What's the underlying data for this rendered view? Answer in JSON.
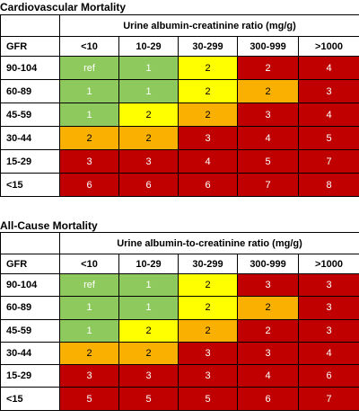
{
  "colors": {
    "green": "#8dc95c",
    "yellow": "#ffff00",
    "orange": "#f9b000",
    "red": "#c00000"
  },
  "tables": [
    {
      "title": "Cardiovascular Mortality",
      "spanning_header": "Urine albumin-creatinine ratio (mg/g)",
      "row_header_label": "GFR",
      "columns": [
        "<10",
        "10-29",
        "30-299",
        "300-999",
        ">1000"
      ],
      "rows": [
        {
          "label": "90-104",
          "values": [
            "ref",
            "1",
            "2",
            "2",
            "4"
          ],
          "colors": [
            "green",
            "green",
            "yellow",
            "red",
            "red"
          ]
        },
        {
          "label": "60-89",
          "values": [
            "1",
            "1",
            "2",
            "2",
            "3"
          ],
          "colors": [
            "green",
            "green",
            "yellow",
            "orange",
            "red"
          ]
        },
        {
          "label": "45-59",
          "values": [
            "1",
            "2",
            "2",
            "3",
            "4"
          ],
          "colors": [
            "green",
            "yellow",
            "orange",
            "red",
            "red"
          ]
        },
        {
          "label": "30-44",
          "values": [
            "2",
            "2",
            "3",
            "4",
            "5"
          ],
          "colors": [
            "orange",
            "orange",
            "red",
            "red",
            "red"
          ]
        },
        {
          "label": "15-29",
          "values": [
            "3",
            "3",
            "4",
            "5",
            "7"
          ],
          "colors": [
            "red",
            "red",
            "red",
            "red",
            "red"
          ]
        },
        {
          "label": "<15",
          "values": [
            "6",
            "6",
            "6",
            "7",
            "8"
          ],
          "colors": [
            "red",
            "red",
            "red",
            "red",
            "red"
          ]
        }
      ]
    },
    {
      "title": "All-Cause Mortality",
      "spanning_header": "Urine albumin-to-creatinine ratio (mg/g)",
      "row_header_label": "GFR",
      "columns": [
        "<10",
        "10-29",
        "30-299",
        "300-999",
        ">1000"
      ],
      "rows": [
        {
          "label": "90-104",
          "values": [
            "ref",
            "1",
            "2",
            "3",
            "3"
          ],
          "colors": [
            "green",
            "green",
            "yellow",
            "red",
            "red"
          ]
        },
        {
          "label": "60-89",
          "values": [
            "1",
            "1",
            "2",
            "2",
            "3"
          ],
          "colors": [
            "green",
            "green",
            "yellow",
            "orange",
            "red"
          ]
        },
        {
          "label": "45-59",
          "values": [
            "1",
            "2",
            "2",
            "2",
            "3"
          ],
          "colors": [
            "green",
            "yellow",
            "orange",
            "red",
            "red"
          ]
        },
        {
          "label": "30-44",
          "values": [
            "2",
            "2",
            "3",
            "3",
            "4"
          ],
          "colors": [
            "orange",
            "orange",
            "red",
            "red",
            "red"
          ]
        },
        {
          "label": "15-29",
          "values": [
            "3",
            "3",
            "3",
            "4",
            "6"
          ],
          "colors": [
            "red",
            "red",
            "red",
            "red",
            "red"
          ]
        },
        {
          "label": "<15",
          "values": [
            "5",
            "5",
            "5",
            "6",
            "7"
          ],
          "colors": [
            "red",
            "red",
            "red",
            "red",
            "red"
          ]
        }
      ]
    }
  ]
}
